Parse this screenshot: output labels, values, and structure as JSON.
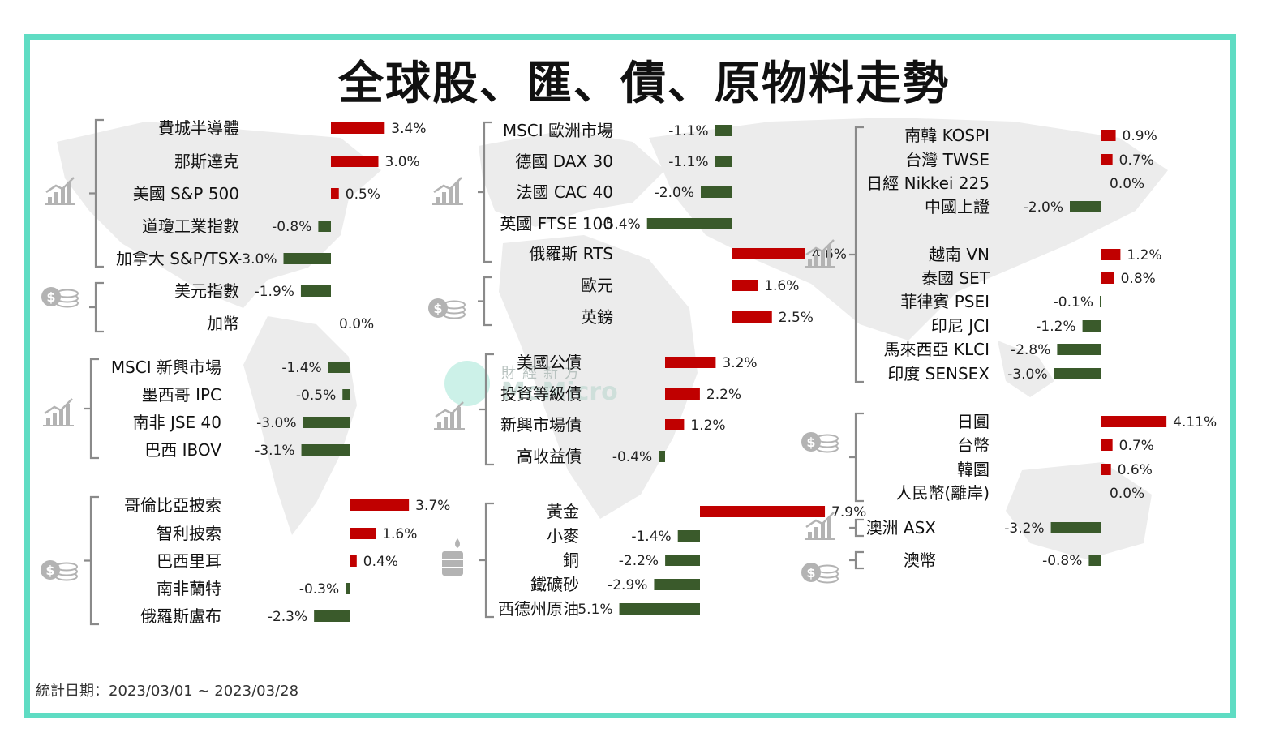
{
  "title": "全球股、匯、債、原物料走勢",
  "date_range": "統計日期：2023/03/01 ~ 2023/03/28",
  "watermark": {
    "line1": "財經新方",
    "line2": "MoMicro"
  },
  "colors": {
    "positive": "#c00000",
    "negative": "#3a5a2b",
    "frame": "#5fdcc3",
    "map": "#ececec"
  },
  "chart_data": {
    "type": "bar",
    "unit": "%",
    "groups": [
      {
        "icon": "stock-chart-icon",
        "series": [
          {
            "label": "費城半導體",
            "value": 3.4,
            "text": "3.4%"
          },
          {
            "label": "那斯達克",
            "value": 3.0,
            "text": "3.0%"
          },
          {
            "label": "美國 S&P 500",
            "value": 0.5,
            "text": "0.5%"
          },
          {
            "label": "道瓊工業指數",
            "value": -0.8,
            "text": "-0.8%"
          },
          {
            "label": "加拿大 S&P/TSX",
            "value": -3.0,
            "text": "-3.0%"
          }
        ]
      },
      {
        "icon": "coins-icon",
        "series": [
          {
            "label": "美元指數",
            "value": -1.9,
            "text": "-1.9%"
          },
          {
            "label": "加幣",
            "value": 0.0,
            "text": "0.0%"
          }
        ]
      },
      {
        "icon": "stock-chart-icon",
        "series": [
          {
            "label": "MSCI 新興市場",
            "value": -1.4,
            "text": "-1.4%"
          },
          {
            "label": "墨西哥 IPC",
            "value": -0.5,
            "text": "-0.5%"
          },
          {
            "label": "南非 JSE 40",
            "value": -3.0,
            "text": "-3.0%"
          },
          {
            "label": "巴西 IBOV",
            "value": -3.1,
            "text": "-3.1%"
          }
        ]
      },
      {
        "icon": "coins-icon",
        "series": [
          {
            "label": "哥倫比亞披索",
            "value": 3.7,
            "text": "3.7%"
          },
          {
            "label": "智利披索",
            "value": 1.6,
            "text": "1.6%"
          },
          {
            "label": "巴西里耳",
            "value": 0.4,
            "text": "0.4%"
          },
          {
            "label": "南非蘭特",
            "value": -0.3,
            "text": "-0.3%"
          },
          {
            "label": "俄羅斯盧布",
            "value": -2.3,
            "text": "-2.3%"
          }
        ]
      },
      {
        "icon": "stock-chart-icon",
        "series": [
          {
            "label": "MSCI 歐洲市場",
            "value": -1.1,
            "text": "-1.1%"
          },
          {
            "label": "德國 DAX 30",
            "value": -1.1,
            "text": "-1.1%"
          },
          {
            "label": "法國 CAC 40",
            "value": -2.0,
            "text": "-2.0%"
          },
          {
            "label": "英國 FTSE 100",
            "value": -5.4,
            "text": "-5.4%"
          },
          {
            "label": "俄羅斯 RTS",
            "value": 4.6,
            "text": "4.6%"
          }
        ]
      },
      {
        "icon": "coins-icon",
        "series": [
          {
            "label": "歐元",
            "value": 1.6,
            "text": "1.6%"
          },
          {
            "label": "英鎊",
            "value": 2.5,
            "text": "2.5%"
          }
        ]
      },
      {
        "icon": "stock-chart-icon",
        "series": [
          {
            "label": "美國公債",
            "value": 3.2,
            "text": "3.2%"
          },
          {
            "label": "投資等級債",
            "value": 2.2,
            "text": "2.2%"
          },
          {
            "label": "新興市場債",
            "value": 1.2,
            "text": "1.2%"
          },
          {
            "label": "高收益債",
            "value": -0.4,
            "text": "-0.4%"
          }
        ]
      },
      {
        "icon": "oil-barrel-icon",
        "series": [
          {
            "label": "黃金",
            "value": 7.9,
            "text": "7.9%"
          },
          {
            "label": "小麥",
            "value": -1.4,
            "text": "-1.4%"
          },
          {
            "label": "銅",
            "value": -2.2,
            "text": "-2.2%"
          },
          {
            "label": "鐵礦砂",
            "value": -2.9,
            "text": "-2.9%"
          },
          {
            "label": "西德州原油",
            "value": -5.1,
            "text": "-5.1%"
          }
        ]
      },
      {
        "icon": "stock-chart-icon",
        "series": [
          {
            "label": "南韓 KOSPI",
            "value": 0.9,
            "text": "0.9%"
          },
          {
            "label": "台灣 TWSE",
            "value": 0.7,
            "text": "0.7%"
          },
          {
            "label": "日經 Nikkei 225",
            "value": 0.0,
            "text": "0.0%"
          },
          {
            "label": "中國上證",
            "value": -2.0,
            "text": "-2.0%"
          },
          {
            "label": "越南 VN",
            "value": 1.2,
            "text": "1.2%"
          },
          {
            "label": "泰國 SET",
            "value": 0.8,
            "text": "0.8%"
          },
          {
            "label": "菲律賓 PSEI",
            "value": -0.1,
            "text": "-0.1%"
          },
          {
            "label": "印尼 JCI",
            "value": -1.2,
            "text": "-1.2%"
          },
          {
            "label": "馬來西亞 KLCI",
            "value": -2.8,
            "text": "-2.8%"
          },
          {
            "label": "印度 SENSEX",
            "value": -3.0,
            "text": "-3.0%"
          }
        ]
      },
      {
        "icon": "coins-icon",
        "series": [
          {
            "label": "日圓",
            "value": 4.11,
            "text": "4.11%"
          },
          {
            "label": "台幣",
            "value": 0.7,
            "text": "0.7%"
          },
          {
            "label": "韓圜",
            "value": 0.6,
            "text": "0.6%"
          },
          {
            "label": "人民幣(離岸)",
            "value": 0.0,
            "text": "0.0%"
          }
        ]
      },
      {
        "icon": "stock-chart-icon",
        "series": [
          {
            "label": "澳洲 ASX",
            "value": -3.2,
            "text": "-3.2%"
          }
        ]
      },
      {
        "icon": "coins-icon",
        "series": [
          {
            "label": "澳幣",
            "value": -0.8,
            "text": "-0.8%"
          }
        ]
      }
    ]
  }
}
